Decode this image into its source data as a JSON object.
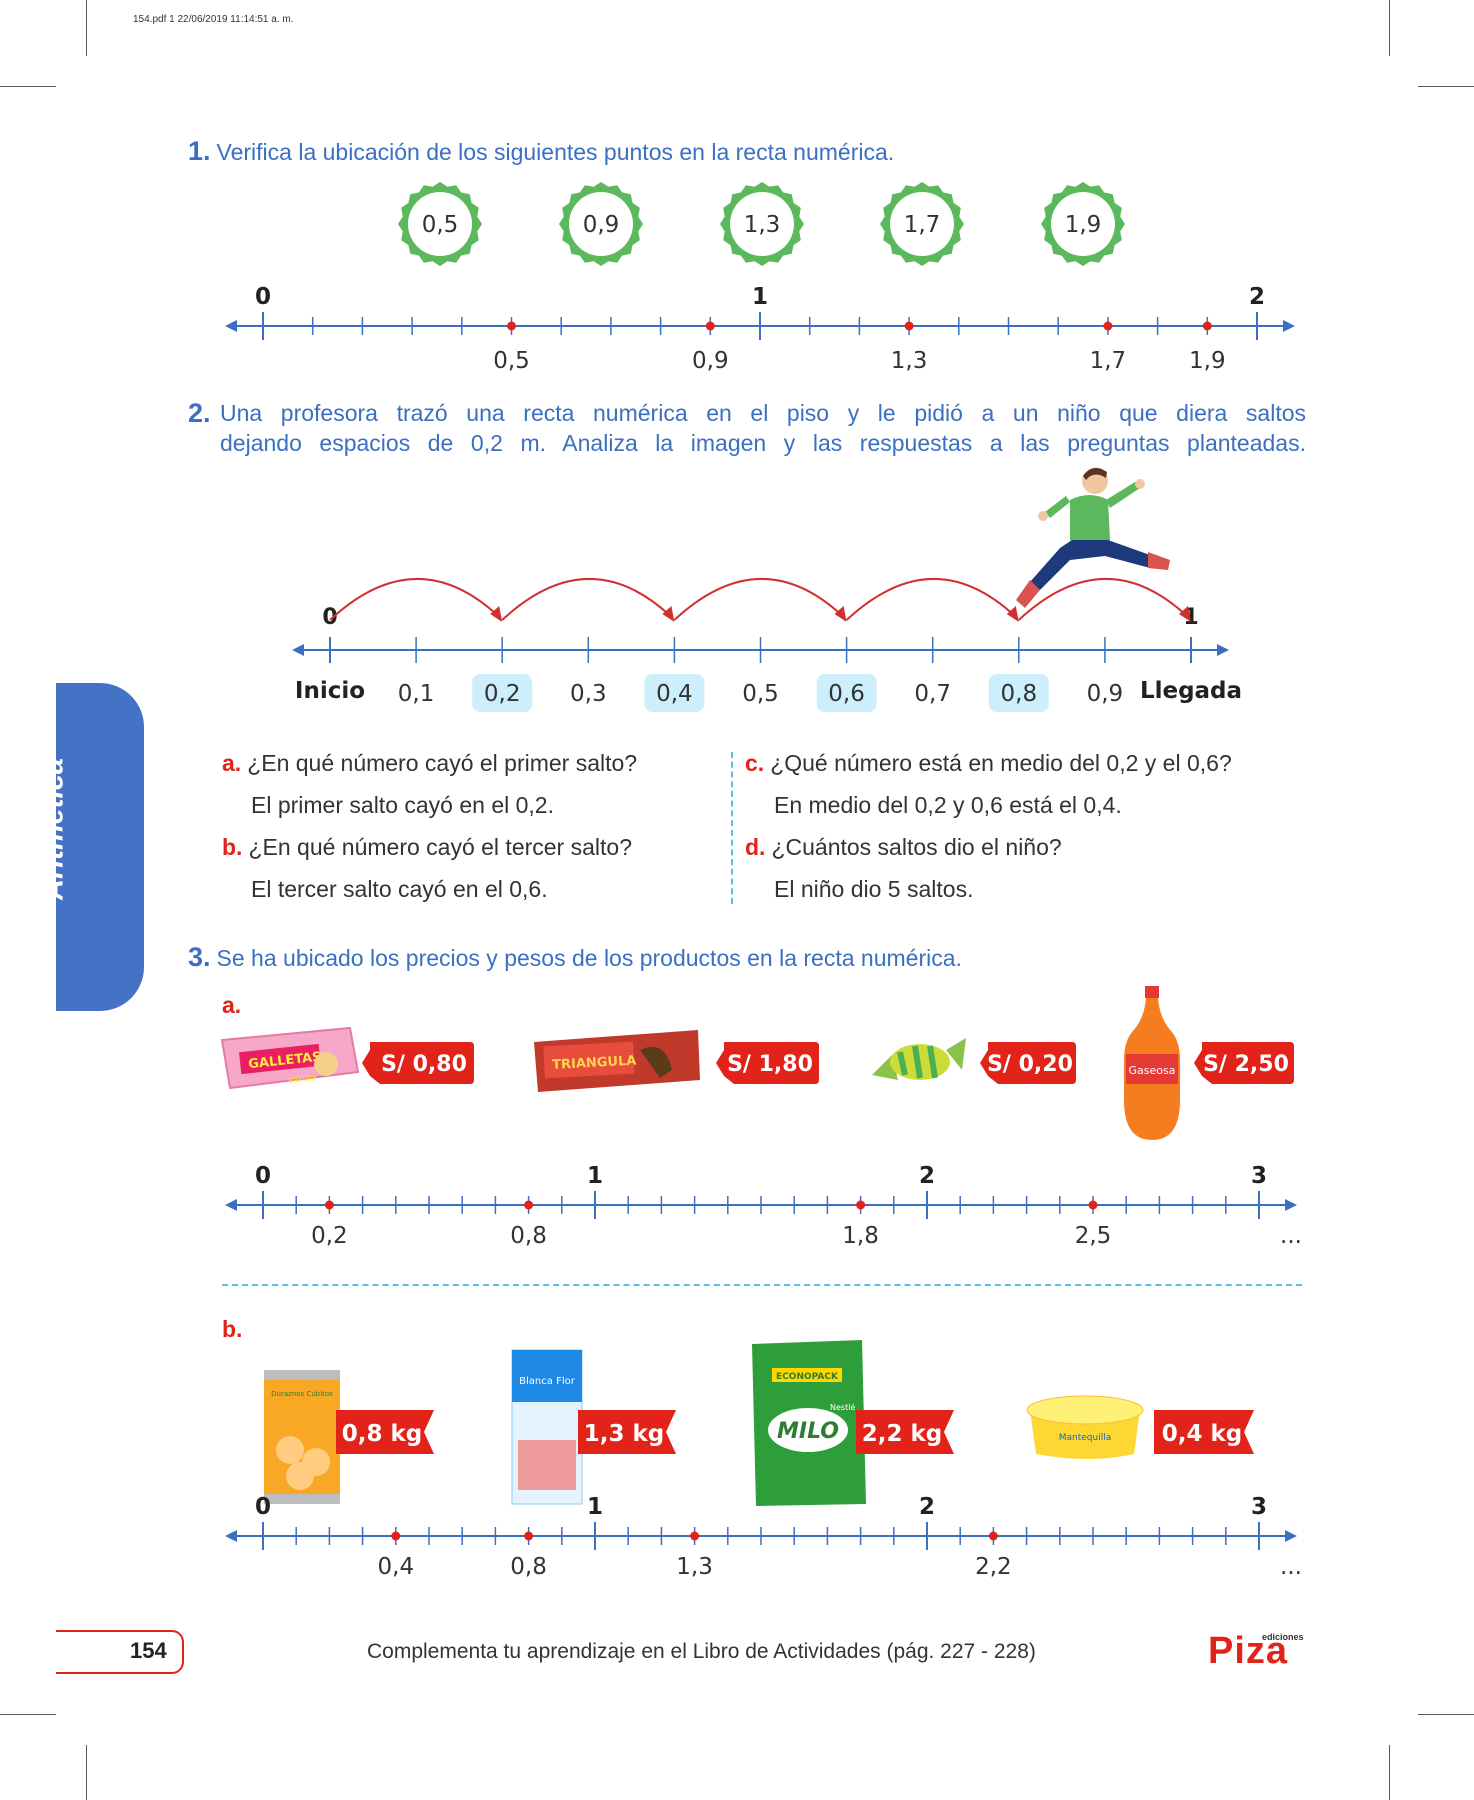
{
  "header": "154.pdf   1   22/06/2019   11:14:51 a. m.",
  "sidebar_label": "Aritmética",
  "q1": {
    "number": "1.",
    "text": "Verifica la ubicación de los siguientes puntos en la recta numérica.",
    "badges": [
      "0,5",
      "0,9",
      "1,3",
      "1,7",
      "1,9"
    ],
    "integers": [
      "0",
      "1",
      "2"
    ],
    "points": [
      {
        "value": 0.5,
        "label": "0,5"
      },
      {
        "value": 0.9,
        "label": "0,9"
      },
      {
        "value": 1.3,
        "label": "1,3"
      },
      {
        "value": 1.7,
        "label": "1,7"
      },
      {
        "value": 1.9,
        "label": "1,9"
      }
    ]
  },
  "q2": {
    "number": "2.",
    "text_line1": "Una profesora trazó una recta numérica en el piso y le pidió a un niño que diera saltos",
    "text_line2": "dejando espacios de 0,2 m. Analiza la imagen y las respuestas a las preguntas planteadas.",
    "start_label": "Inicio",
    "end_label": "Llegada",
    "integers": [
      "0",
      "1"
    ],
    "ticks": [
      {
        "value": 0.1,
        "label": "0,1",
        "highlight": false
      },
      {
        "value": 0.2,
        "label": "0,2",
        "highlight": true
      },
      {
        "value": 0.3,
        "label": "0,3",
        "highlight": false
      },
      {
        "value": 0.4,
        "label": "0,4",
        "highlight": true
      },
      {
        "value": 0.5,
        "label": "0,5",
        "highlight": false
      },
      {
        "value": 0.6,
        "label": "0,6",
        "highlight": true
      },
      {
        "value": 0.7,
        "label": "0,7",
        "highlight": false
      },
      {
        "value": 0.8,
        "label": "0,8",
        "highlight": true
      },
      {
        "value": 0.9,
        "label": "0,9",
        "highlight": false
      }
    ],
    "jumps": [
      [
        0,
        0.2
      ],
      [
        0.2,
        0.4
      ],
      [
        0.4,
        0.6
      ],
      [
        0.6,
        0.8
      ],
      [
        0.8,
        1.0
      ]
    ],
    "questions": [
      {
        "letter": "a.",
        "q": "¿En qué número cayó el primer salto?",
        "a": "El primer salto cayó en el 0,2."
      },
      {
        "letter": "b.",
        "q": "¿En qué número cayó el tercer salto?",
        "a": "El tercer salto cayó en el 0,6."
      },
      {
        "letter": "c.",
        "q": "¿Qué número está en medio del 0,2 y el 0,6?",
        "a": "En medio del 0,2 y 0,6 está el 0,4."
      },
      {
        "letter": "d.",
        "q": "¿Cuántos saltos dio el niño?",
        "a": "El niño dio 5 saltos."
      }
    ]
  },
  "q3": {
    "number": "3.",
    "text": "Se ha ubicado los precios y pesos de los productos en la recta numérica.",
    "part_a": {
      "letter": "a.",
      "products": [
        {
          "name": "GALLETAS",
          "sub": "Vainilla",
          "price": "S/ 0,80"
        },
        {
          "name": "TRIANGULA",
          "sub": "",
          "price": "S/ 1,80"
        },
        {
          "name": "",
          "sub": "",
          "price": "S/ 0,20"
        },
        {
          "name": "Gaseosa",
          "sub": "",
          "price": "S/ 2,50"
        }
      ],
      "integers": [
        "0",
        "1",
        "2",
        "3"
      ],
      "points": [
        {
          "value": 0.2,
          "label": "0,2"
        },
        {
          "value": 0.8,
          "label": "0,8"
        },
        {
          "value": 1.8,
          "label": "1,8"
        },
        {
          "value": 2.5,
          "label": "2,5"
        }
      ],
      "ellipsis": "..."
    },
    "part_b": {
      "letter": "b.",
      "products": [
        {
          "name": "Duraznos Cubitos",
          "weight": "0,8 kg"
        },
        {
          "name": "Blanca Flor",
          "weight": "1,3 kg"
        },
        {
          "name": "MILO",
          "brand": "Nestlé",
          "banner": "ECONOPACK",
          "weight": "2,2 kg"
        },
        {
          "name": "Mantequilla",
          "weight": "0,4 kg"
        }
      ],
      "integers": [
        "0",
        "1",
        "2",
        "3"
      ],
      "points": [
        {
          "value": 0.4,
          "label": "0,4"
        },
        {
          "value": 0.8,
          "label": "0,8"
        },
        {
          "value": 1.3,
          "label": "1,3"
        },
        {
          "value": 2.2,
          "label": "2,2"
        }
      ],
      "ellipsis": "..."
    }
  },
  "footer": {
    "page": "154",
    "text": "Complementa tu aprendizaje en el Libro de Actividades (pág. 227 - 228)",
    "logo_small": "ediciones",
    "logo": "Piza"
  }
}
